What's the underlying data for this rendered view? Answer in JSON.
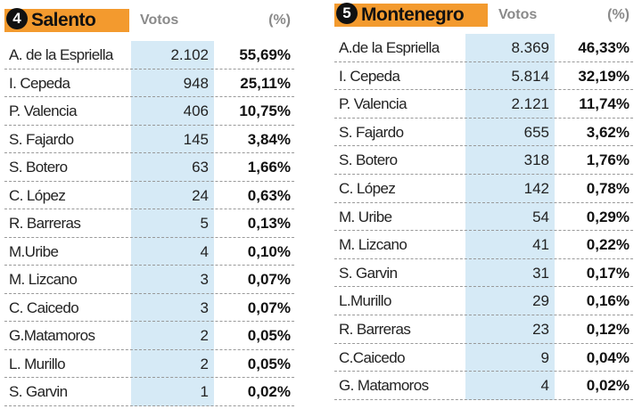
{
  "tables": [
    {
      "number": "4",
      "title": "Salento",
      "headers": [
        "Votos",
        "(%)"
      ],
      "rows": [
        [
          "A. de la Espriella",
          "2.102",
          "55,69%"
        ],
        [
          "I. Cepeda",
          "948",
          "25,11%"
        ],
        [
          "P. Valencia",
          "406",
          "10,75%"
        ],
        [
          "S. Fajardo",
          "145",
          "3,84%"
        ],
        [
          "S. Botero",
          "63",
          "1,66%"
        ],
        [
          "C. López",
          "24",
          "0,63%"
        ],
        [
          "R. Barreras",
          "5",
          "0,13%"
        ],
        [
          "M.Uribe",
          "4",
          "0,10%"
        ],
        [
          "M. Lizcano",
          "3",
          "0,07%"
        ],
        [
          "C. Caicedo",
          "3",
          "0,07%"
        ],
        [
          "G.Matamoros",
          "2",
          "0,05%"
        ],
        [
          "L. Murillo",
          "2",
          "0,05%"
        ],
        [
          "S. Garvin",
          "1",
          "0,02%"
        ]
      ]
    },
    {
      "number": "5",
      "title": "Montenegro",
      "headers": [
        "Votos",
        "(%)"
      ],
      "rows": [
        [
          "A.de la Espriella",
          "8.369",
          "46,33%"
        ],
        [
          "I. Cepeda",
          "5.814",
          "32,19%"
        ],
        [
          "P. Valencia",
          "2.121",
          "11,74%"
        ],
        [
          "S. Fajardo",
          "655",
          "3,62%"
        ],
        [
          "S. Botero",
          "318",
          "1,76%"
        ],
        [
          "C. López",
          "142",
          "0,78%"
        ],
        [
          "M. Uribe",
          "54",
          "0,29%"
        ],
        [
          "M. Lizcano",
          "41",
          "0,22%"
        ],
        [
          "S. Garvin",
          "31",
          "0,17%"
        ],
        [
          "L.Murillo",
          "29",
          "0,16%"
        ],
        [
          "R. Barreras",
          "23",
          "0,12%"
        ],
        [
          "C.Caicedo",
          "9",
          "0,04%"
        ],
        [
          "G. Matamoros",
          "4",
          "0,02%"
        ]
      ]
    }
  ]
}
